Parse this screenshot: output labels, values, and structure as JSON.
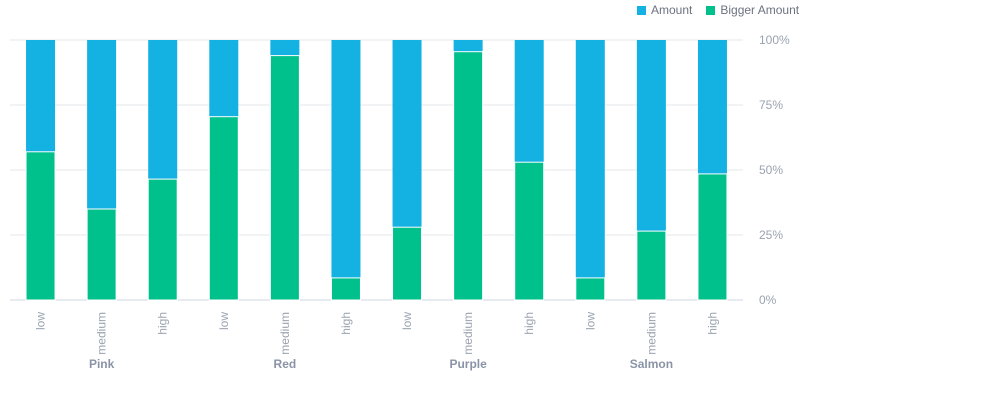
{
  "legend": {
    "series_a": "Amount",
    "series_b": "Bigger Amount"
  },
  "colors": {
    "amount": "#14B1E3",
    "bigger_amount": "#00C08B",
    "grid": "#e5e7eb",
    "axis": "#cfd5dd"
  },
  "chart_data": {
    "type": "bar",
    "stacked": "percent",
    "groups": [
      "Pink",
      "Red",
      "Purple",
      "Salmon"
    ],
    "categories": [
      "low",
      "medium",
      "high",
      "low",
      "medium",
      "high",
      "low",
      "medium",
      "high",
      "low",
      "medium",
      "high"
    ],
    "series": [
      {
        "name": "Bigger Amount",
        "values": [
          57,
          35,
          46.5,
          70.5,
          94,
          8.5,
          28,
          95.5,
          53,
          8.5,
          26.5,
          48.5
        ]
      },
      {
        "name": "Amount",
        "values": [
          43,
          65,
          53.5,
          29.5,
          6,
          91.5,
          72,
          4.5,
          47,
          91.5,
          73.5,
          51.5
        ]
      }
    ],
    "y_ticks": [
      "0%",
      "25%",
      "50%",
      "75%",
      "100%"
    ],
    "ylim": [
      0,
      100
    ],
    "grid": true,
    "legend_position": "top-right"
  }
}
